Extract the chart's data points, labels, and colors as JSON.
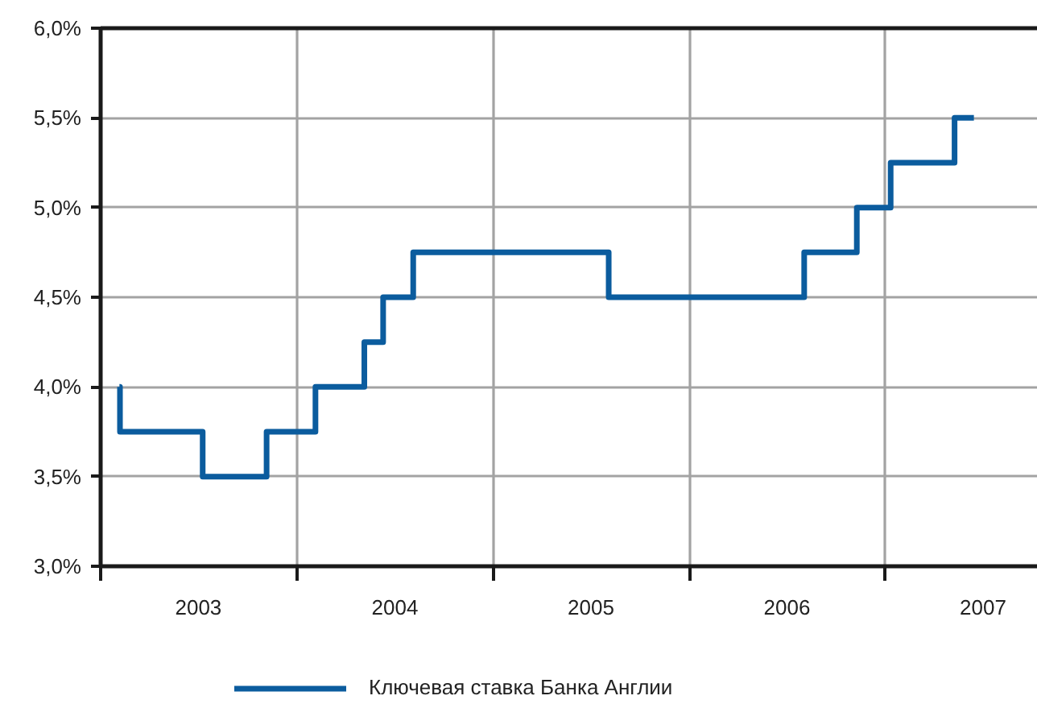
{
  "chart_data": {
    "type": "step",
    "x": [
      "2003-02-05",
      "2003-02-06",
      "2003-07-10",
      "2003-11-06",
      "2004-02-05",
      "2004-05-06",
      "2004-06-10",
      "2004-08-05",
      "2005-08-04",
      "2006-08-03",
      "2006-11-09",
      "2007-01-11",
      "2007-05-10",
      "2007-06-15"
    ],
    "series": [
      {
        "name": "Ключевая ставка Банка Англии",
        "color": "#0b5c9e",
        "values": [
          4.0,
          3.75,
          3.5,
          3.75,
          4.0,
          4.25,
          4.5,
          4.75,
          4.5,
          4.75,
          5.0,
          5.25,
          5.5,
          5.5
        ]
      }
    ],
    "xlim": [
      "2003-01-01",
      "2007-10-12"
    ],
    "xticks": [
      {
        "value": "2003-01-01",
        "label": null
      },
      {
        "value": "2003-07-02",
        "label": "2003"
      },
      {
        "value": "2004-01-01",
        "label": null
      },
      {
        "value": "2004-07-02",
        "label": "2004"
      },
      {
        "value": "2005-01-01",
        "label": null
      },
      {
        "value": "2005-07-02",
        "label": "2005"
      },
      {
        "value": "2006-01-01",
        "label": null
      },
      {
        "value": "2006-07-02",
        "label": "2006"
      },
      {
        "value": "2007-01-01",
        "label": null
      },
      {
        "value": "2007-07-02",
        "label": "2007"
      }
    ],
    "ylim": [
      3.0,
      6.0
    ],
    "yticks": [
      {
        "value": 3.0,
        "label": "3,0%"
      },
      {
        "value": 3.5,
        "label": "3,5%"
      },
      {
        "value": 4.0,
        "label": "4,0%"
      },
      {
        "value": 4.5,
        "label": "4,5%"
      },
      {
        "value": 5.0,
        "label": "5,0%"
      },
      {
        "value": 5.5,
        "label": "5,5%"
      },
      {
        "value": 6.0,
        "label": "6,0%"
      }
    ],
    "grid": true,
    "legend": "bottom"
  }
}
